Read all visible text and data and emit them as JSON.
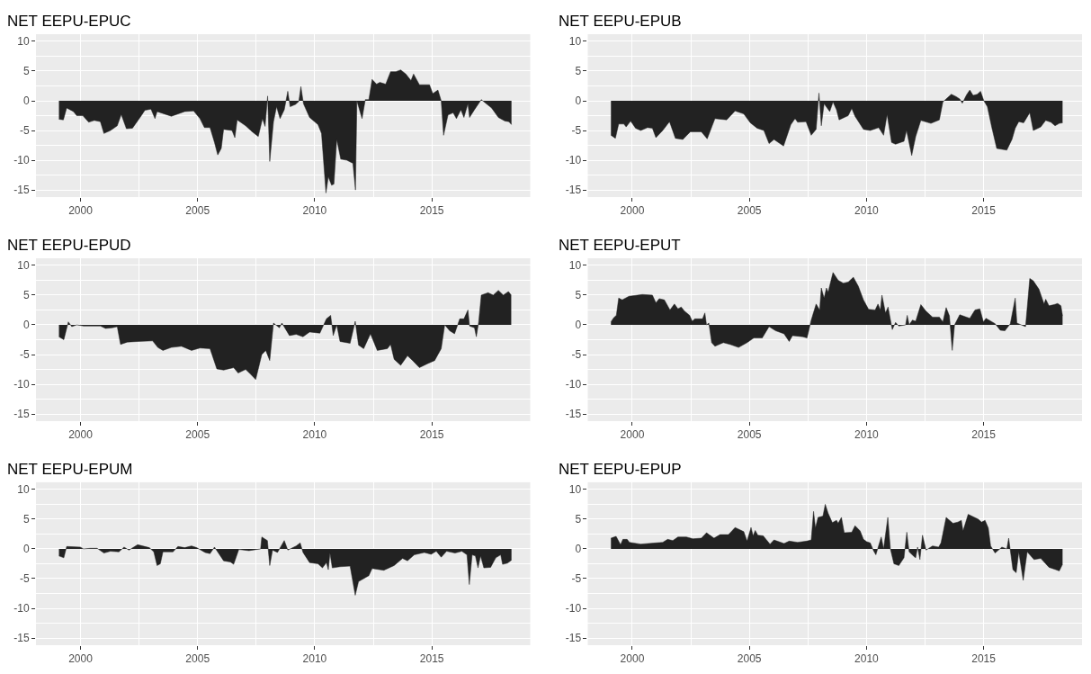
{
  "chart_data": [
    {
      "type": "area",
      "title": "NET EEPU-EPUC",
      "color": "#222222",
      "xlim": [
        1998.1,
        2019.2
      ],
      "ylim": [
        -16.2,
        11.2
      ],
      "xticks": [
        2000,
        2005,
        2010,
        2015
      ],
      "yticks": [
        -15,
        -10,
        -5,
        0,
        5,
        10
      ],
      "grid": true,
      "x": [
        1999.08,
        1999.27,
        1999.41,
        1999.7,
        1999.84,
        2000.1,
        2000.35,
        2000.59,
        2000.85,
        2001.0,
        2001.28,
        2001.57,
        2001.74,
        2001.96,
        2002.22,
        2002.58,
        2002.75,
        2003.01,
        2003.18,
        2003.27,
        2003.88,
        2004.45,
        2004.83,
        2005.1,
        2005.29,
        2005.53,
        2005.72,
        2005.86,
        2006.01,
        2006.11,
        2006.47,
        2006.59,
        2006.69,
        2007.05,
        2007.33,
        2007.59,
        2007.77,
        2007.88,
        2007.99,
        2008.08,
        2008.24,
        2008.37,
        2008.52,
        2008.7,
        2008.85,
        2008.95,
        2009.18,
        2009.32,
        2009.41,
        2009.52,
        2009.78,
        2010.14,
        2010.29,
        2010.48,
        2010.58,
        2010.72,
        2010.82,
        2010.94,
        2011.11,
        2011.37,
        2011.63,
        2011.74,
        2011.8,
        2012.02,
        2012.16,
        2012.31,
        2012.45,
        2012.64,
        2012.78,
        2013.03,
        2013.24,
        2013.46,
        2013.67,
        2013.89,
        2014.11,
        2014.22,
        2014.47,
        2014.9,
        2015.04,
        2015.26,
        2015.4,
        2015.5,
        2015.69,
        2015.91,
        2016.05,
        2016.24,
        2016.37,
        2016.54,
        2016.61,
        2016.82,
        2017.11,
        2017.55,
        2017.84,
        2018.12,
        2018.29,
        2018.4
      ],
      "values": [
        -3.1,
        -3.2,
        -1.2,
        -1.8,
        -2.5,
        -2.5,
        -3.6,
        -3.3,
        -3.5,
        -5.5,
        -5.0,
        -4.2,
        -2.3,
        -4.7,
        -4.6,
        -2.6,
        -1.6,
        -1.4,
        -3.0,
        -1.8,
        -2.6,
        -1.8,
        -1.7,
        -3.0,
        -4.5,
        -4.5,
        -7.0,
        -9.1,
        -8.0,
        -4.8,
        -5.0,
        -6.2,
        -3.2,
        -4.2,
        -5.2,
        -6.0,
        -3.0,
        -4.3,
        0.8,
        -10.2,
        -3.5,
        -1.0,
        -3.0,
        -1.5,
        1.6,
        -1.0,
        -0.6,
        -0.1,
        2.4,
        -0.5,
        -2.8,
        -4.0,
        -5.5,
        -15.5,
        -12.8,
        -14.2,
        -14.0,
        -6.5,
        -9.8,
        -10.0,
        -10.5,
        -15.0,
        0,
        -3.0,
        0.2,
        0.2,
        3.6,
        2.8,
        3.1,
        2.8,
        4.9,
        4.9,
        5.2,
        4.5,
        3.4,
        4.5,
        2.7,
        2.7,
        1.2,
        1.8,
        0,
        -5.8,
        -2.4,
        -2.0,
        -3.0,
        -1.5,
        -2.8,
        -0.5,
        -2.8,
        -1.5,
        0.2,
        -1.2,
        -2.8,
        -3.4,
        -3.5,
        -4.0
      ]
    },
    {
      "type": "area",
      "title": "NET EEPU-EPUB",
      "color": "#222222",
      "xlim": [
        1998.1,
        2019.2
      ],
      "ylim": [
        -16.2,
        11.2
      ],
      "xticks": [
        2000,
        2005,
        2010,
        2015
      ],
      "yticks": [
        -15,
        -10,
        -5,
        0,
        5,
        10
      ],
      "grid": true,
      "x": [
        1999.09,
        1999.28,
        1999.42,
        1999.64,
        1999.74,
        1999.93,
        2000.14,
        2000.36,
        2000.65,
        2000.86,
        2001.01,
        2001.3,
        2001.59,
        2001.84,
        2002.16,
        2002.48,
        2002.95,
        2003.2,
        2003.53,
        2004.03,
        2004.39,
        2004.76,
        2005.04,
        2005.33,
        2005.62,
        2005.84,
        2006.05,
        2006.46,
        2006.77,
        2006.95,
        2007.06,
        2007.42,
        2007.64,
        2007.85,
        2007.97,
        2008.07,
        2008.19,
        2008.43,
        2008.57,
        2008.72,
        2008.83,
        2009.22,
        2009.37,
        2009.51,
        2009.87,
        2010.16,
        2010.52,
        2010.73,
        2010.88,
        2011.07,
        2011.24,
        2011.6,
        2011.71,
        2011.93,
        2012.1,
        2012.32,
        2012.75,
        2013.11,
        2013.26,
        2013.62,
        2013.83,
        2013.98,
        2014.09,
        2014.27,
        2014.41,
        2014.55,
        2014.73,
        2014.87,
        2015.01,
        2015.16,
        2015.35,
        2015.56,
        2015.99,
        2016.21,
        2016.35,
        2016.5,
        2016.71,
        2016.97,
        2017.12,
        2017.44,
        2017.65,
        2017.87,
        2018.05,
        2018.23,
        2018.37
      ],
      "values": [
        -5.8,
        -6.3,
        -3.9,
        -3.9,
        -4.4,
        -3.4,
        -4.6,
        -5.0,
        -4.5,
        -4.6,
        -6.2,
        -5.0,
        -3.5,
        -6.3,
        -6.5,
        -5.2,
        -5.2,
        -6.4,
        -3.0,
        -3.2,
        -1.7,
        -2.2,
        -3.7,
        -4.6,
        -5.0,
        -7.2,
        -6.5,
        -7.6,
        -4.0,
        -3.0,
        -3.6,
        -3.5,
        -5.8,
        -4.8,
        1.3,
        -4.2,
        -0.5,
        -1.8,
        -0.2,
        -1.5,
        -3.2,
        -2.5,
        -1.3,
        -2.6,
        -4.8,
        -5.0,
        -4.5,
        -5.8,
        -2.3,
        -7.0,
        -7.3,
        -6.8,
        -5.0,
        -9.2,
        -6.0,
        -3.3,
        -3.8,
        -3.2,
        -0.2,
        1.1,
        0.7,
        0.3,
        -0.4,
        1.0,
        1.8,
        0.9,
        1.1,
        1.6,
        0,
        -1.0,
        -4.5,
        -8.0,
        -8.3,
        -6.5,
        -4.6,
        -3.5,
        -3.7,
        -2.0,
        -5.0,
        -4.4,
        -3.3,
        -3.6,
        -4.2,
        -3.8,
        -3.7
      ]
    },
    {
      "type": "area",
      "title": "NET EEPU-EPUD",
      "color": "#222222",
      "xlim": [
        1998.1,
        2019.2
      ],
      "ylim": [
        -16.2,
        11.2
      ],
      "xticks": [
        2000,
        2005,
        2010,
        2015
      ],
      "yticks": [
        -15,
        -10,
        -5,
        0,
        5,
        10
      ],
      "grid": true,
      "x": [
        1999.08,
        1999.29,
        1999.48,
        1999.63,
        1999.84,
        2000.13,
        2000.85,
        2001.07,
        2001.35,
        2001.57,
        2001.71,
        2002.0,
        2002.44,
        2003.08,
        2003.3,
        2003.52,
        2003.88,
        2004.31,
        2004.74,
        2005.1,
        2005.53,
        2005.82,
        2006.11,
        2006.54,
        2006.73,
        2007.05,
        2007.26,
        2007.48,
        2007.74,
        2007.91,
        2008.08,
        2008.24,
        2008.49,
        2008.6,
        2008.92,
        2009.21,
        2009.5,
        2009.78,
        2010.22,
        2010.5,
        2010.68,
        2010.79,
        2010.94,
        2011.08,
        2011.51,
        2011.73,
        2011.87,
        2012.09,
        2012.38,
        2012.67,
        2013.1,
        2013.24,
        2013.39,
        2013.67,
        2013.96,
        2014.18,
        2014.47,
        2014.83,
        2015.12,
        2015.4,
        2015.55,
        2015.76,
        2015.97,
        2016.19,
        2016.37,
        2016.54,
        2016.61,
        2016.82,
        2016.9,
        2017.0,
        2017.11,
        2017.4,
        2017.62,
        2017.84,
        2018.05,
        2018.27,
        2018.39
      ],
      "values": [
        -2.0,
        -2.5,
        0.5,
        -0.3,
        0,
        -0.2,
        -0.2,
        -0.6,
        -0.5,
        -0.3,
        -3.3,
        -2.9,
        -2.8,
        -2.7,
        -3.8,
        -4.3,
        -3.8,
        -3.6,
        -4.3,
        -3.9,
        -4.0,
        -7.4,
        -7.6,
        -7.2,
        -8.1,
        -7.5,
        -8.3,
        -9.2,
        -5.0,
        -4.3,
        -6.0,
        0.3,
        -0.5,
        0.3,
        -1.8,
        -1.6,
        -2.0,
        -1.2,
        -1.4,
        1.0,
        1.6,
        -1.8,
        0,
        -2.8,
        -3.1,
        0.6,
        -3.4,
        -4.0,
        -1.5,
        -4.3,
        -4.0,
        -3.3,
        -5.8,
        -6.8,
        -5.2,
        -6.0,
        -7.2,
        -6.5,
        -6.0,
        -4.0,
        0,
        -1.0,
        -1.5,
        1.0,
        1.0,
        2.5,
        -0.2,
        -0.5,
        -2.0,
        0.5,
        5.0,
        5.4,
        5.0,
        5.8,
        5.0,
        5.6,
        5.0
      ]
    },
    {
      "type": "area",
      "title": "NET EEPU-EPUT",
      "color": "#222222",
      "xlim": [
        1998.1,
        2019.2
      ],
      "ylim": [
        -16.2,
        11.2
      ],
      "xticks": [
        2000,
        2005,
        2010,
        2015
      ],
      "yticks": [
        -15,
        -10,
        -5,
        0,
        5,
        10
      ],
      "grid": true,
      "x": [
        1999.09,
        1999.21,
        1999.32,
        1999.42,
        1999.57,
        1999.86,
        2000.43,
        2000.86,
        2001.01,
        2001.15,
        2001.37,
        2001.61,
        2001.8,
        2001.95,
        2002.09,
        2002.23,
        2002.45,
        2002.56,
        2002.67,
        2003.0,
        2003.1,
        2003.17,
        2003.27,
        2003.39,
        2003.53,
        2003.89,
        2004.18,
        2004.54,
        2004.9,
        2005.19,
        2005.55,
        2005.84,
        2006.12,
        2006.48,
        2006.7,
        2006.84,
        2007.28,
        2007.46,
        2007.64,
        2007.85,
        2008.0,
        2008.07,
        2008.19,
        2008.29,
        2008.36,
        2008.57,
        2008.79,
        2009.01,
        2009.22,
        2009.44,
        2009.65,
        2009.87,
        2010.09,
        2010.37,
        2010.49,
        2010.59,
        2010.66,
        2010.81,
        2010.92,
        2011.1,
        2011.24,
        2011.38,
        2011.67,
        2011.74,
        2011.82,
        2011.96,
        2012.1,
        2012.32,
        2012.54,
        2012.82,
        2013.11,
        2013.26,
        2013.4,
        2013.54,
        2013.66,
        2013.76,
        2013.98,
        2014.41,
        2014.63,
        2014.84,
        2014.99,
        2015.1,
        2015.49,
        2015.71,
        2015.91,
        2016.14,
        2016.35,
        2016.42,
        2016.79,
        2016.97,
        2017.12,
        2017.36,
        2017.58,
        2017.65,
        2017.79,
        2018.01,
        2018.16,
        2018.3,
        2018.37
      ],
      "values": [
        0.5,
        1.2,
        1.6,
        4.5,
        4.2,
        4.8,
        5.1,
        5.0,
        3.7,
        4.4,
        4.2,
        2.5,
        3.5,
        2.7,
        3.0,
        2.3,
        1.6,
        0.6,
        1.0,
        1.0,
        2.0,
        0,
        0.3,
        -3.0,
        -3.6,
        -3.0,
        -3.3,
        -3.8,
        -3.0,
        -2.2,
        -2.2,
        -0.3,
        -1.0,
        -1.5,
        -2.8,
        -1.8,
        -2.0,
        -2.2,
        0.8,
        3.5,
        2.5,
        6.2,
        4.5,
        6.2,
        5.5,
        8.8,
        7.5,
        7.0,
        7.2,
        8.0,
        6.5,
        4.2,
        2.6,
        2.5,
        3.5,
        2.5,
        5.0,
        2.0,
        3.0,
        -0.8,
        0.4,
        -0.2,
        0,
        1.6,
        0,
        0.8,
        0.6,
        3.4,
        2.3,
        1.3,
        1.3,
        0.5,
        2.9,
        1.5,
        -4.3,
        0,
        1.7,
        1.1,
        2.5,
        2.7,
        0.5,
        1.1,
        0.2,
        -0.9,
        -1.0,
        0.2,
        4.5,
        0.3,
        -0.3,
        7.8,
        7.4,
        6.0,
        3.5,
        4.3,
        3.2,
        3.4,
        3.6,
        3.2,
        1.5
      ]
    },
    {
      "type": "area",
      "title": "NET EEPU-EPUM",
      "color": "#222222",
      "xlim": [
        1998.1,
        2019.2
      ],
      "ylim": [
        -16.2,
        11.2
      ],
      "xticks": [
        2000,
        2005,
        2010,
        2015
      ],
      "yticks": [
        -15,
        -10,
        -5,
        0,
        5,
        10
      ],
      "grid": true,
      "x": [
        1999.08,
        1999.29,
        1999.41,
        1999.99,
        2000.13,
        2000.42,
        2000.71,
        2001.0,
        2001.28,
        2001.64,
        2001.86,
        2002.07,
        2002.44,
        2002.94,
        2003.13,
        2003.27,
        2003.41,
        2003.52,
        2003.95,
        2004.16,
        2004.45,
        2004.74,
        2004.96,
        2005.32,
        2005.53,
        2005.72,
        2006.11,
        2006.4,
        2006.54,
        2006.76,
        2007.19,
        2007.69,
        2007.74,
        2007.98,
        2008.08,
        2008.2,
        2008.41,
        2008.7,
        2008.85,
        2009.21,
        2009.38,
        2009.5,
        2009.78,
        2010.14,
        2010.33,
        2010.5,
        2010.58,
        2010.65,
        2010.75,
        2011.08,
        2011.51,
        2011.73,
        2011.87,
        2012.31,
        2012.45,
        2012.95,
        2013.39,
        2013.75,
        2013.96,
        2014.25,
        2014.68,
        2014.97,
        2015.19,
        2015.4,
        2015.63,
        2015.99,
        2016.28,
        2016.5,
        2016.6,
        2016.72,
        2016.86,
        2016.97,
        2017.08,
        2017.22,
        2017.51,
        2017.73,
        2017.94,
        2018.02,
        2018.23,
        2018.4
      ],
      "values": [
        -1.2,
        -1.5,
        0.4,
        0.3,
        0,
        0.1,
        0.1,
        -0.7,
        -0.4,
        -0.5,
        0.3,
        -0.2,
        0.7,
        0.2,
        -0.5,
        -2.8,
        -2.5,
        -0.5,
        -0.5,
        0.4,
        0.2,
        0.5,
        0.2,
        -0.6,
        -0.8,
        0.3,
        -2.0,
        -2.2,
        -2.6,
        -0.1,
        -0.3,
        0,
        2.0,
        1.4,
        -2.8,
        -0.2,
        -0.6,
        1.4,
        -0.2,
        0.5,
        1.0,
        -0.6,
        -2.3,
        -2.5,
        -3.2,
        -2.3,
        -3.5,
        -0.7,
        -3.2,
        -3.0,
        -2.9,
        -7.8,
        -5.5,
        -4.5,
        -3.3,
        -3.6,
        -2.8,
        -1.6,
        -2.0,
        -1.0,
        -0.6,
        -0.9,
        -0.4,
        -1.4,
        -0.4,
        -0.7,
        -0.4,
        -1.0,
        -6.0,
        -1.0,
        -1.2,
        -3.2,
        -1.2,
        -3.2,
        -3.1,
        -1.5,
        -1.0,
        -2.6,
        -2.4,
        -1.9
      ]
    },
    {
      "type": "area",
      "title": "NET EEPU-EPUP",
      "color": "#222222",
      "xlim": [
        1998.1,
        2019.2
      ],
      "ylim": [
        -16.2,
        11.2
      ],
      "xticks": [
        2000,
        2005,
        2010,
        2015
      ],
      "yticks": [
        -15,
        -10,
        -5,
        0,
        5,
        10
      ],
      "grid": true,
      "x": [
        1999.09,
        1999.31,
        1999.5,
        1999.6,
        1999.78,
        1999.88,
        2000.36,
        2001.01,
        2001.3,
        2001.51,
        2001.73,
        2001.95,
        2002.31,
        2002.59,
        2002.95,
        2003.17,
        2003.49,
        2003.75,
        2004.11,
        2004.39,
        2004.76,
        2004.9,
        2005.07,
        2005.16,
        2005.25,
        2005.36,
        2005.59,
        2005.88,
        2006.05,
        2006.48,
        2006.7,
        2007.06,
        2007.45,
        2007.64,
        2007.74,
        2007.82,
        2007.93,
        2008.14,
        2008.24,
        2008.36,
        2008.54,
        2008.72,
        2008.79,
        2008.93,
        2009.05,
        2009.37,
        2009.51,
        2009.73,
        2009.87,
        2010.01,
        2010.16,
        2010.3,
        2010.4,
        2010.63,
        2010.73,
        2010.91,
        2011.02,
        2011.17,
        2011.38,
        2011.6,
        2011.72,
        2011.82,
        2012.03,
        2012.1,
        2012.18,
        2012.28,
        2012.39,
        2012.54,
        2012.82,
        2013.08,
        2013.18,
        2013.4,
        2013.69,
        2013.9,
        2014.05,
        2014.12,
        2014.34,
        2014.77,
        2014.91,
        2015.06,
        2015.2,
        2015.3,
        2015.49,
        2015.78,
        2015.99,
        2016.07,
        2016.25,
        2016.39,
        2016.5,
        2016.69,
        2016.86,
        2017.15,
        2017.44,
        2017.65,
        2017.79,
        2018.08,
        2018.23,
        2018.37
      ],
      "values": [
        1.8,
        2.1,
        0.7,
        1.6,
        1.6,
        1.1,
        0.8,
        1.0,
        1.1,
        1.6,
        1.4,
        2.0,
        2.0,
        1.7,
        1.8,
        2.7,
        1.8,
        2.4,
        2.4,
        3.6,
        2.9,
        1.3,
        3.6,
        2.2,
        3.1,
        2.3,
        2.2,
        0.8,
        1.5,
        0.9,
        1.3,
        1.1,
        1.3,
        1.5,
        6.3,
        3.5,
        5.3,
        5.5,
        7.5,
        6.0,
        4.4,
        4.8,
        4.3,
        5.3,
        2.7,
        2.8,
        3.9,
        3.0,
        1.6,
        1.2,
        1.0,
        -0.3,
        -1.0,
        2.0,
        0,
        5.3,
        0,
        -2.5,
        -2.8,
        -1.5,
        2.8,
        -0.5,
        -1.3,
        -1.5,
        0.3,
        -1.8,
        2.3,
        -0.2,
        0.5,
        0.3,
        1.0,
        5.3,
        4.3,
        4.5,
        4.8,
        3.0,
        5.8,
        5.0,
        4.5,
        4.8,
        3.5,
        0.5,
        -0.7,
        0.3,
        0,
        1.8,
        -3.5,
        -4.0,
        -0.5,
        -5.3,
        -0.5,
        -1.8,
        -1.6,
        -2.5,
        -3.1,
        -3.5,
        -3.7,
        -2.6
      ]
    }
  ]
}
